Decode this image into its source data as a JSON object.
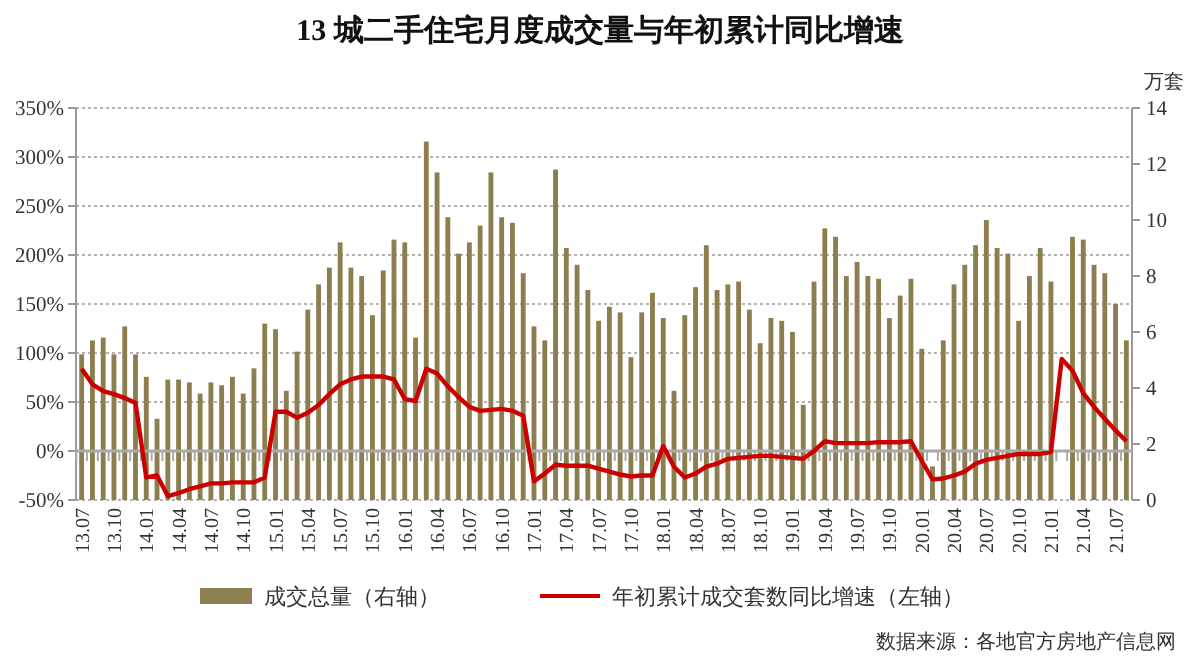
{
  "chart_data": {
    "type": "bar",
    "title": "13 城二手住宅月度成交量与年初累计同比增速",
    "y2label": "万套",
    "categories": [
      "13.07",
      null,
      null,
      "13.10",
      null,
      null,
      "14.01",
      null,
      null,
      "14.04",
      null,
      null,
      "14.07",
      null,
      null,
      "14.10",
      null,
      null,
      "15.01",
      null,
      null,
      "15.04",
      null,
      null,
      "15.07",
      null,
      null,
      "15.10",
      null,
      null,
      "16.01",
      null,
      null,
      "16.04",
      null,
      null,
      "16.07",
      null,
      null,
      "16.10",
      null,
      null,
      "17.01",
      null,
      null,
      "17.04",
      null,
      null,
      "17.07",
      null,
      null,
      "17.10",
      null,
      null,
      "18.01",
      null,
      null,
      "18.04",
      null,
      null,
      "18.07",
      null,
      null,
      "18.10",
      null,
      null,
      "19.01",
      null,
      null,
      "19.04",
      null,
      null,
      "19.07",
      null,
      null,
      "19.10",
      null,
      null,
      "20.01",
      null,
      null,
      "20.04",
      null,
      null,
      "20.07",
      null,
      null,
      "20.10",
      null,
      null,
      "21.01",
      null,
      null,
      "21.04",
      null,
      null,
      "21.07",
      null
    ],
    "series": [
      {
        "name": "成交总量（右轴）",
        "axis": "y2",
        "color": "#8c7e4e",
        "values": [
          5.2,
          5.7,
          5.8,
          5.2,
          6.2,
          5.2,
          4.4,
          2.9,
          4.3,
          4.3,
          4.2,
          3.8,
          4.2,
          4.1,
          4.4,
          3.8,
          4.7,
          6.3,
          6.1,
          3.9,
          5.3,
          6.8,
          7.7,
          8.3,
          9.2,
          8.3,
          8.0,
          6.6,
          8.2,
          9.3,
          9.2,
          5.8,
          12.8,
          11.7,
          10.1,
          8.8,
          9.2,
          9.8,
          11.7,
          10.1,
          9.9,
          8.1,
          6.2,
          5.7,
          11.8,
          9.0,
          8.4,
          7.5,
          6.4,
          6.9,
          6.7,
          5.1,
          6.7,
          7.4,
          6.5,
          3.9,
          6.6,
          7.6,
          9.1,
          7.5,
          7.7,
          7.8,
          6.8,
          5.6,
          6.5,
          6.4,
          6.0,
          3.4,
          7.8,
          9.7,
          9.4,
          8.0,
          8.5,
          8.0,
          7.9,
          6.5,
          7.3,
          7.9,
          5.4,
          1.2,
          5.7,
          7.7,
          8.4,
          9.1,
          10.0,
          9.0,
          8.8,
          6.4,
          8.0,
          9.0,
          7.8,
          null,
          9.4,
          9.3,
          8.4,
          8.1,
          7.0,
          5.7
        ]
      },
      {
        "name": "年初累计成交套数同比增速（左轴）",
        "type": "line",
        "axis": "y",
        "color": "#cc0000",
        "values": [
          84,
          68,
          61,
          58,
          54,
          49,
          -27,
          -25,
          -46,
          -43,
          -39,
          -36,
          -33,
          -33,
          -32,
          -32,
          -32,
          -27,
          40,
          40,
          34,
          39,
          47,
          58,
          68,
          73,
          76,
          76,
          76,
          73,
          53,
          51,
          84,
          79,
          66,
          55,
          45,
          41,
          42,
          43,
          41,
          36,
          -31,
          -23,
          -14,
          -15,
          -15,
          -15,
          -18,
          -21,
          -24,
          -26,
          -25,
          -25,
          5,
          -16,
          -27,
          -23,
          -16,
          -13,
          -8,
          -7,
          -6,
          -5,
          -5,
          -6,
          -7,
          -8,
          0,
          10,
          8,
          8,
          8,
          8,
          9,
          9,
          9,
          10,
          -10,
          -29,
          -28,
          -25,
          -21,
          -13,
          -9,
          -7,
          -5,
          -3,
          -3,
          -3,
          -1,
          94,
          82,
          59,
          45,
          33,
          21,
          10
        ]
      }
    ],
    "ylim": [
      -50,
      350
    ],
    "yticks": [
      {
        "value": -50,
        "label": "-50%"
      },
      {
        "value": 0,
        "label": "0%"
      },
      {
        "value": 50,
        "label": "50%"
      },
      {
        "value": 100,
        "label": "100%"
      },
      {
        "value": 150,
        "label": "150%"
      },
      {
        "value": 200,
        "label": "200%"
      },
      {
        "value": 250,
        "label": "250%"
      },
      {
        "value": 300,
        "label": "300%"
      },
      {
        "value": 350,
        "label": "350%"
      }
    ],
    "y2lim": [
      0,
      14
    ],
    "y2ticks": [
      0,
      2,
      4,
      6,
      8,
      10,
      12,
      14
    ],
    "grid": "y",
    "legend": "bottom",
    "line_style": "solid",
    "marker": "none",
    "annotations": [
      "数据来源：各地官方房地产信息网"
    ]
  }
}
